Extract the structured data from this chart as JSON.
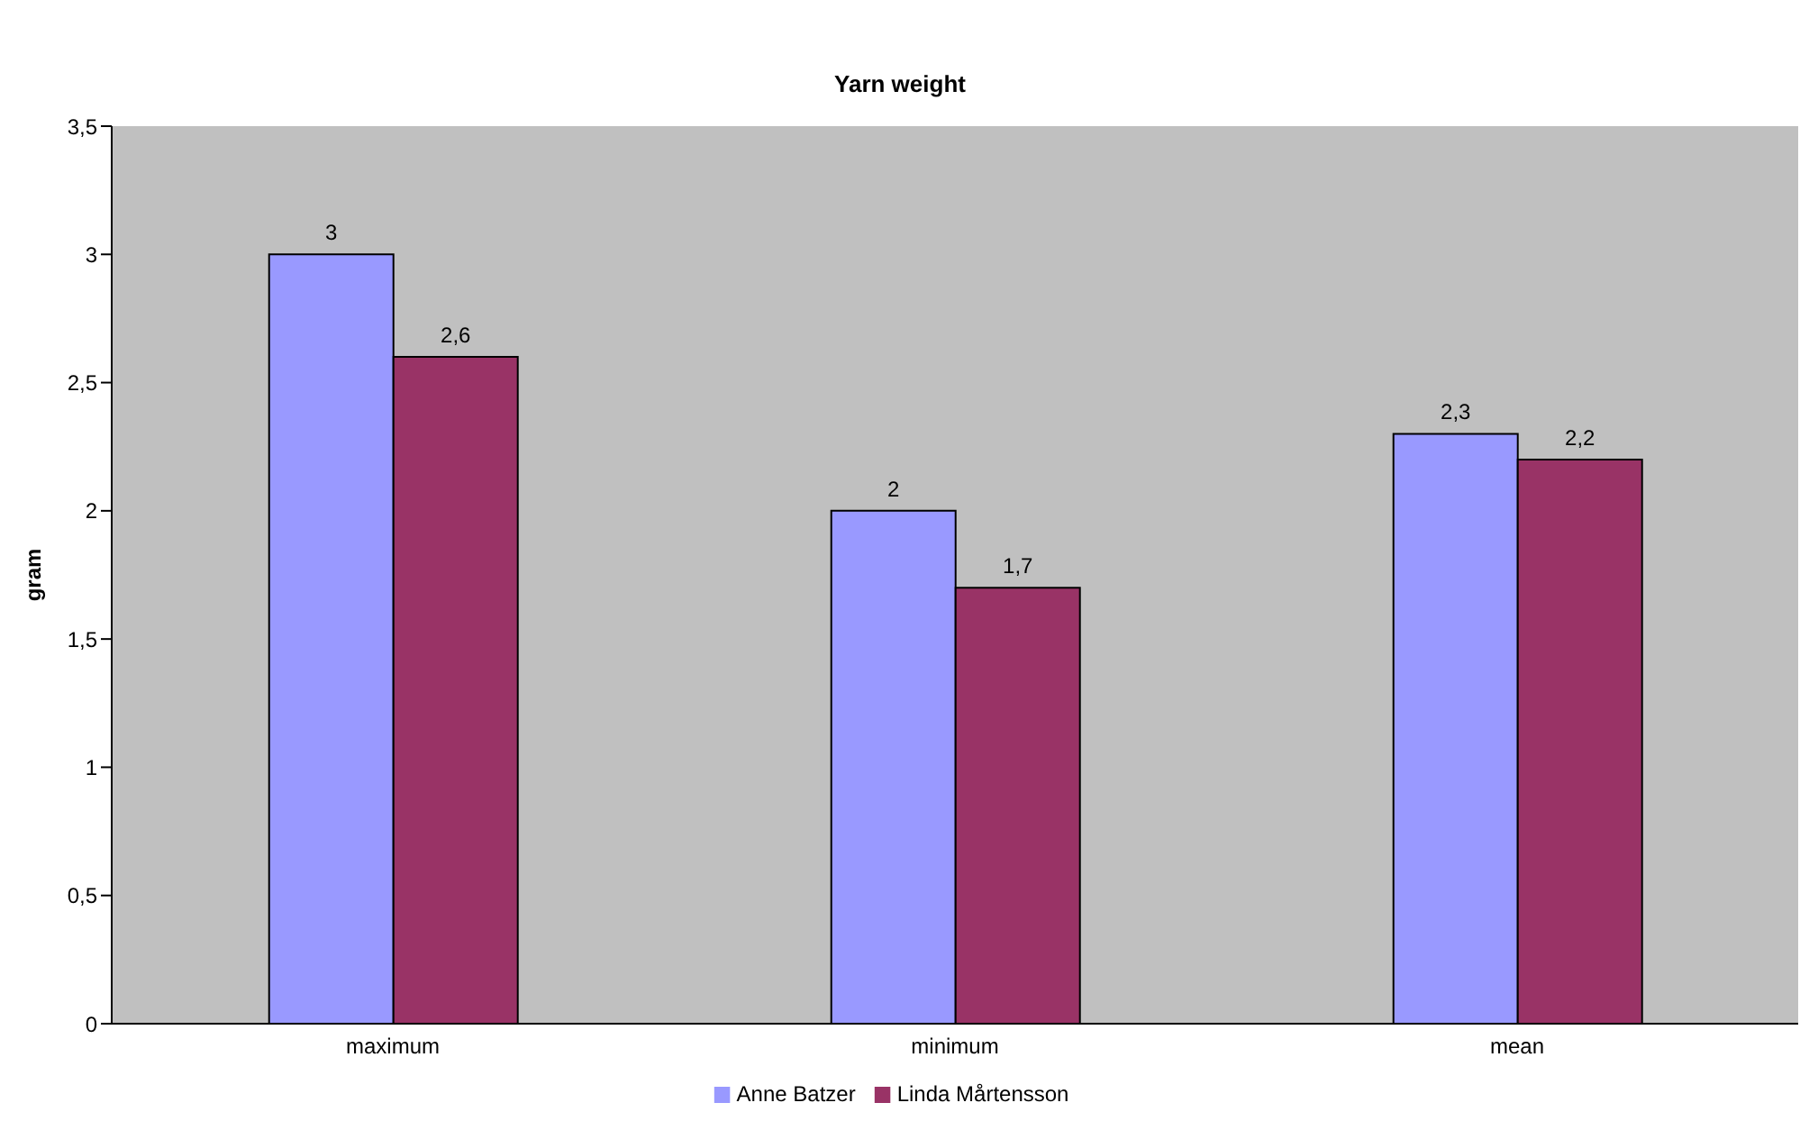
{
  "chart_data": {
    "type": "bar",
    "title": "Yarn weight",
    "ylabel": "gram",
    "categories": [
      "maximum",
      "minimum",
      "mean"
    ],
    "series": [
      {
        "name": "Anne Batzer",
        "color": "#9999ff",
        "values": [
          3,
          2,
          2.3
        ],
        "value_labels": [
          "3",
          "2",
          "2,3"
        ]
      },
      {
        "name": "Linda Mårtensson",
        "color": "#993366",
        "values": [
          2.6,
          1.7,
          2.2
        ],
        "value_labels": [
          "2,6",
          "1,7",
          "2,2"
        ]
      }
    ],
    "ylim": [
      0,
      3.5
    ],
    "yticks": [
      0,
      {
        "value": 0.5,
        "label": "0,5"
      },
      1,
      {
        "value": 1.5,
        "label": "1,5"
      },
      2,
      {
        "value": 2.5,
        "label": "2,5"
      },
      3,
      {
        "value": 3.5,
        "label": "3,5"
      }
    ],
    "legend": "bottom"
  }
}
